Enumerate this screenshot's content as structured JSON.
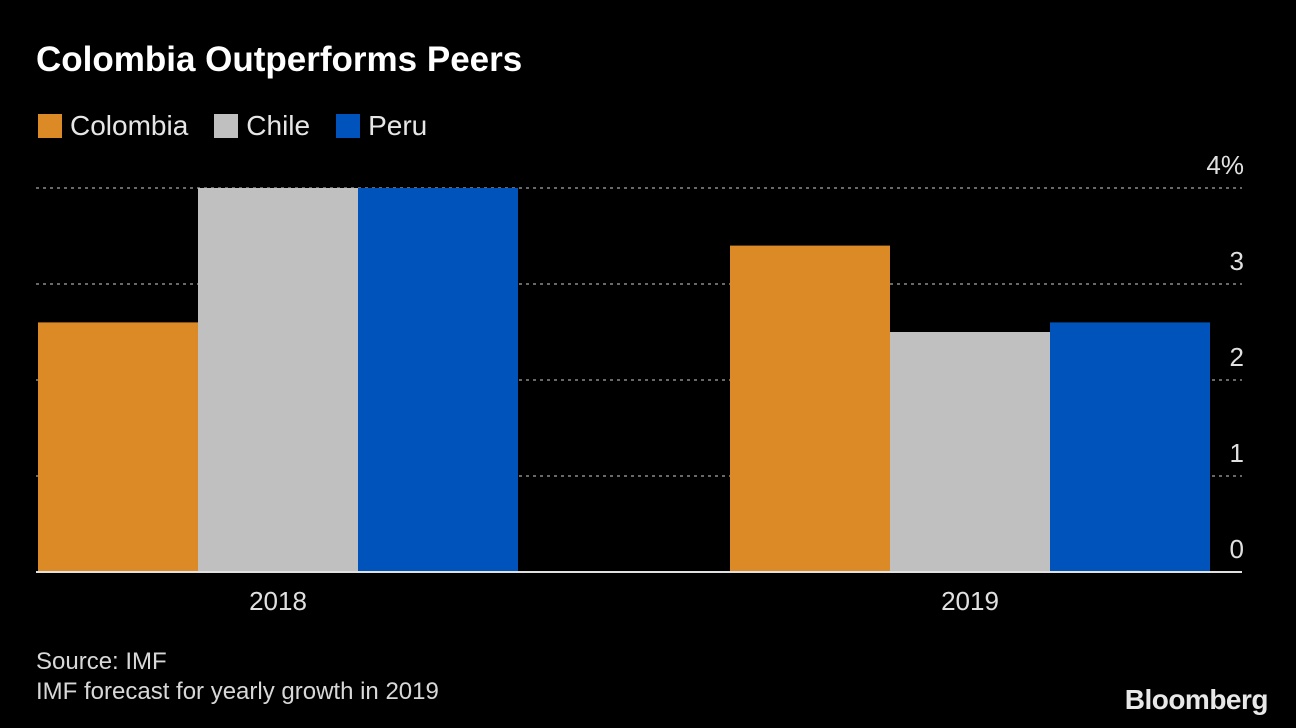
{
  "chart_data": {
    "type": "bar",
    "title": "Colombia Outperforms Peers",
    "categories": [
      "2018",
      "2019"
    ],
    "series": [
      {
        "name": "Colombia",
        "color": "#DB8A25",
        "values": [
          2.6,
          3.4
        ]
      },
      {
        "name": "Chile",
        "color": "#C0C0C0",
        "values": [
          4.0,
          2.5
        ]
      },
      {
        "name": "Peru",
        "color": "#0053BA",
        "values": [
          4.0,
          2.6
        ]
      }
    ],
    "ylim": [
      0,
      4
    ],
    "yticks": [
      "0",
      "1",
      "2",
      "3",
      "4%"
    ],
    "ytick_values": [
      0,
      1,
      2,
      3,
      4
    ],
    "y_axis_side": "right",
    "grid": true,
    "legend_placement": "top-left",
    "xlabel": "",
    "ylabel": ""
  },
  "footer": {
    "source": "Source: IMF",
    "note": "IMF forecast for yearly growth in 2019"
  },
  "logo": "Bloomberg"
}
